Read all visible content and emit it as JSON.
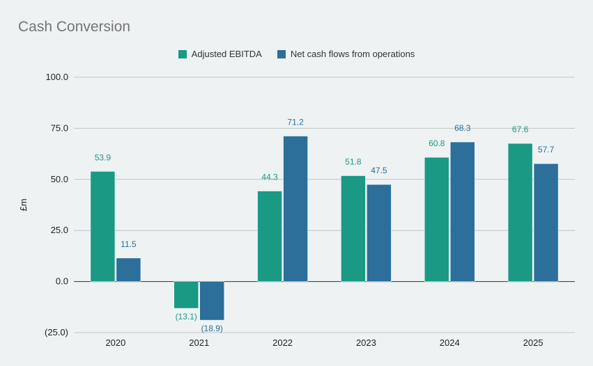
{
  "chart_data": {
    "type": "bar",
    "title": "Cash Conversion",
    "ylabel": "£m",
    "xlabel": "",
    "categories": [
      "2020",
      "2021",
      "2022",
      "2023",
      "2024",
      "2025"
    ],
    "series": [
      {
        "name": "Adjusted EBITDA",
        "color": "#1a9985",
        "values": [
          53.9,
          -13.1,
          44.3,
          51.8,
          60.8,
          67.6
        ],
        "labels": [
          "53.9",
          "(13.1)",
          "44.3",
          "51.8",
          "60.8",
          "67.6"
        ]
      },
      {
        "name": "Net cash flows from operations",
        "color": "#2b6f9a",
        "values": [
          11.5,
          -18.9,
          71.2,
          47.5,
          68.3,
          57.7
        ],
        "labels": [
          "11.5",
          "(18.9)",
          "71.2",
          "47.5",
          "68.3",
          "57.7"
        ]
      }
    ],
    "ylim": [
      -25,
      100
    ],
    "yticks": [
      -25,
      0,
      25,
      50,
      75,
      100
    ],
    "ytick_labels": [
      "(25.0)",
      "0.0",
      "25.0",
      "50.0",
      "75.0",
      "100.0"
    ],
    "grid": true,
    "legend_position": "top-center"
  }
}
